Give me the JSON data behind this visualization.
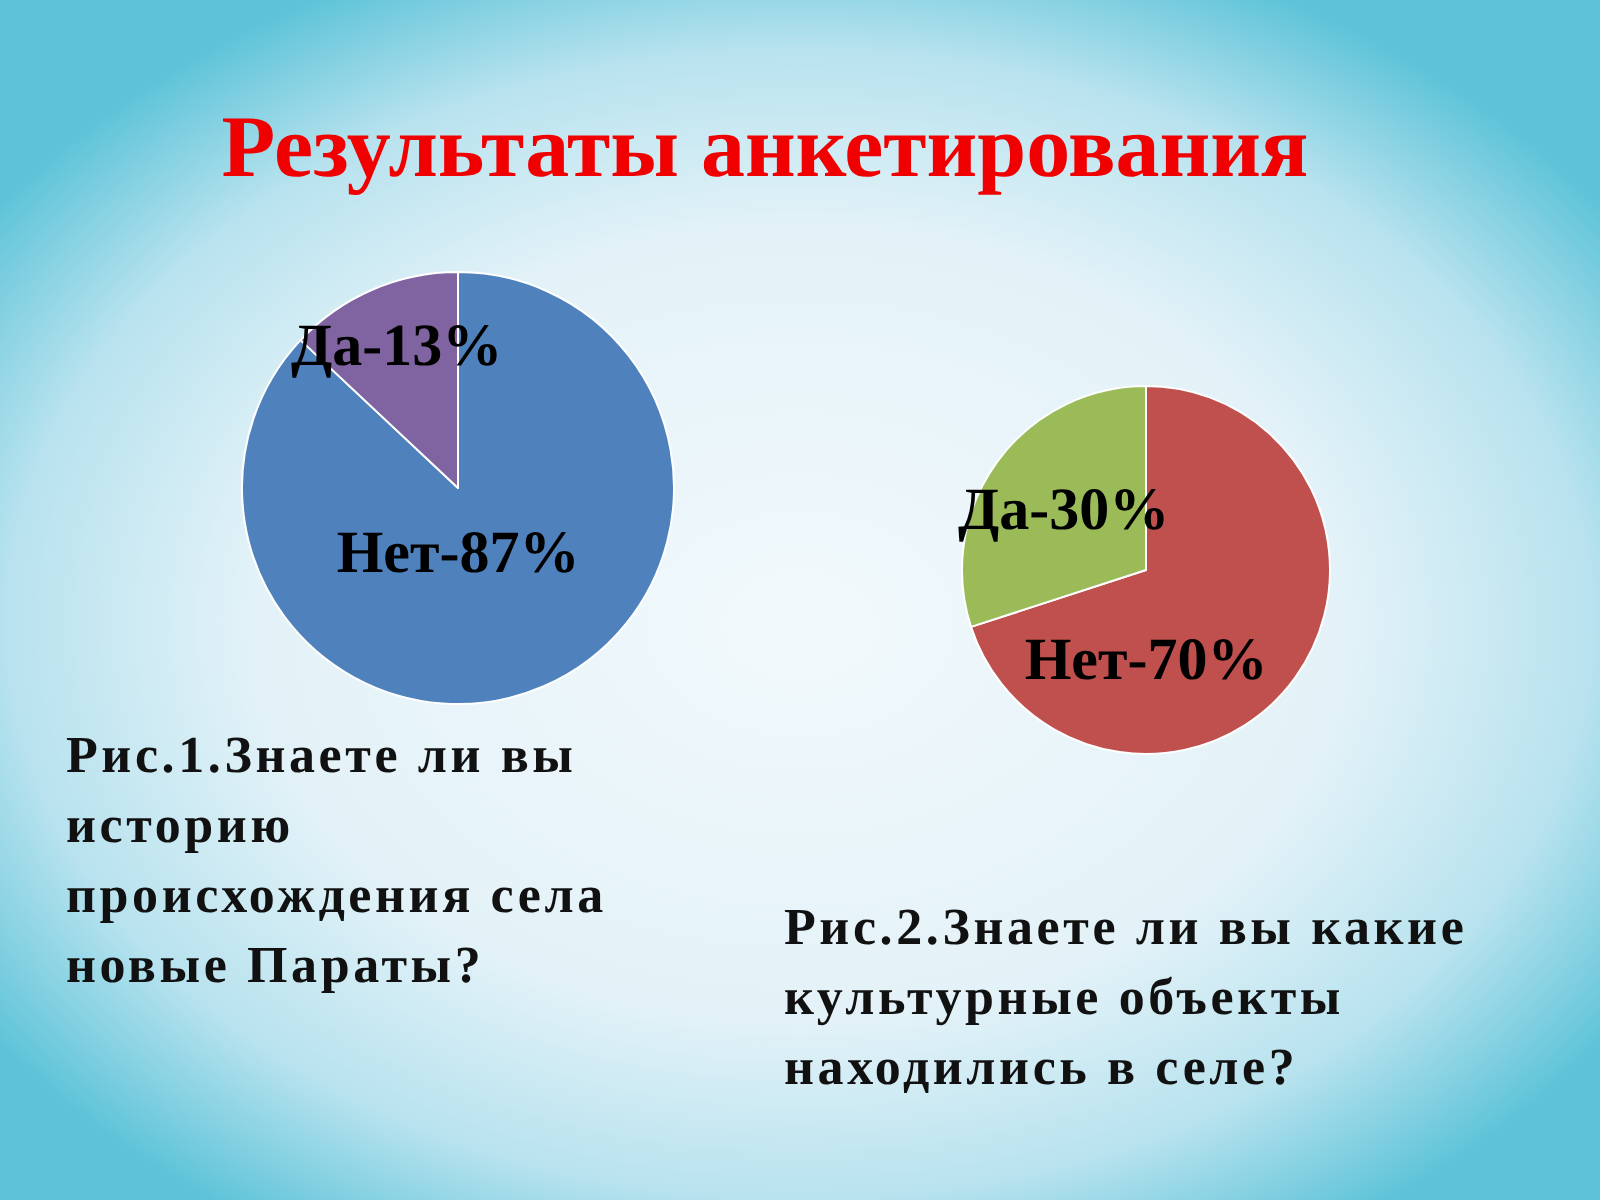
{
  "chart_data": [
    {
      "type": "pie",
      "title": "Результаты анкетирования",
      "categories": [
        "Нет-87%",
        "Да-13%"
      ],
      "values": [
        87,
        13
      ],
      "colors": [
        "#4f81bd",
        "#8064a2"
      ],
      "annotations": [
        "Рис.1.Знаете ли вы историю происхождения села новые Параты?"
      ]
    },
    {
      "type": "pie",
      "categories": [
        "Нет-70%",
        "Да-30%"
      ],
      "values": [
        70,
        30
      ],
      "colors": [
        "#c0504d",
        "#9bbb59"
      ],
      "annotations": [
        "Рис.2.Знаете ли вы какие культурные объекты находились в селе?"
      ]
    }
  ]
}
